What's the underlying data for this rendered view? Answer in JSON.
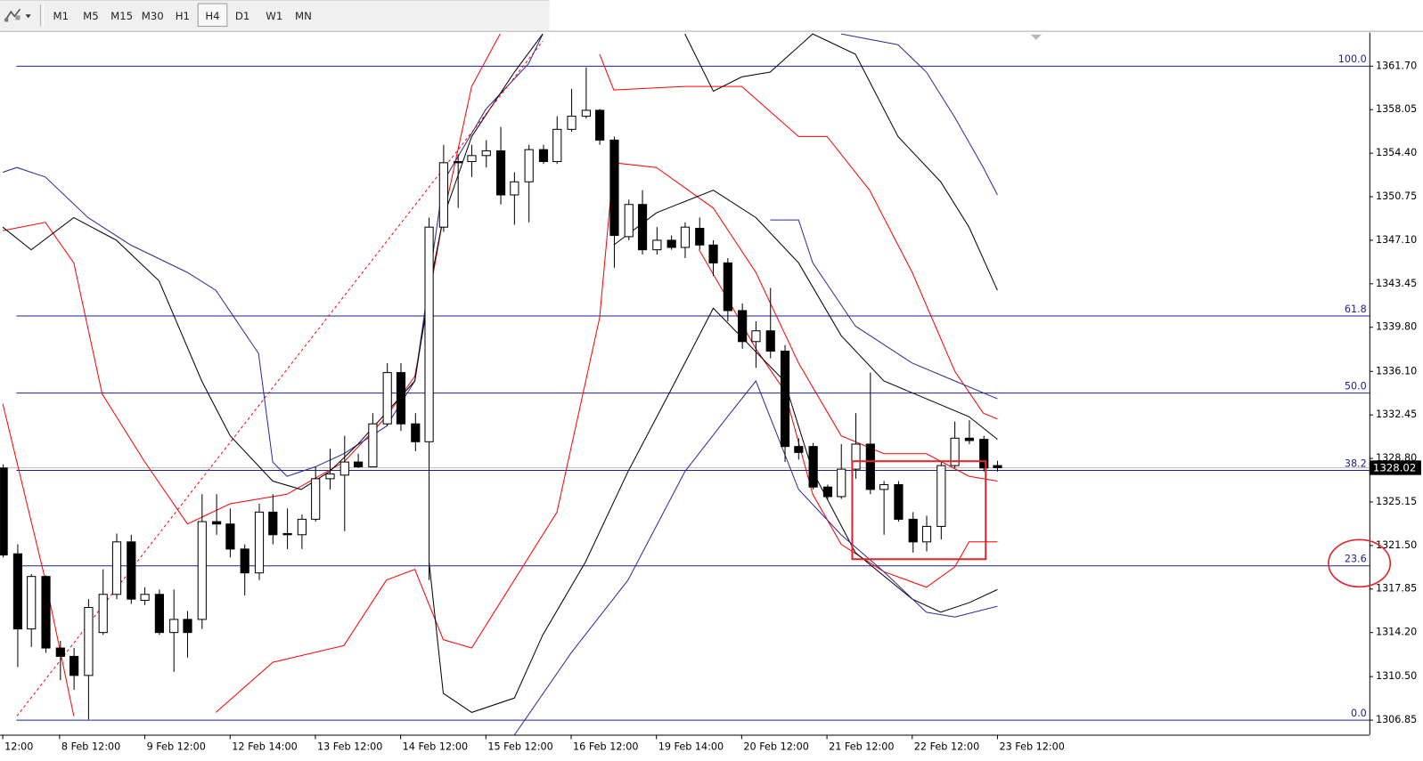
{
  "toolbar": {
    "buttons": [
      "M1",
      "M5",
      "M15",
      "M30",
      "H1",
      "H4",
      "D1",
      "W1",
      "MN"
    ],
    "active": "H4"
  },
  "chart_data": {
    "type": "candlestick",
    "x": [
      0,
      1,
      2,
      3,
      4,
      5,
      6,
      7,
      8,
      9,
      10,
      11,
      12,
      13,
      14,
      15,
      16,
      17,
      18,
      19,
      20,
      21,
      22,
      23,
      24,
      25,
      26,
      27,
      28,
      29,
      30,
      31,
      32,
      33,
      34,
      35,
      36,
      37,
      38,
      39,
      40,
      41,
      42,
      43,
      44,
      45,
      46,
      47,
      48,
      49,
      50,
      51,
      52,
      53,
      54,
      55,
      56,
      57,
      58,
      59,
      60,
      61,
      62,
      63,
      64,
      65,
      66,
      67,
      68,
      69,
      70
    ],
    "open": [
      1328.0,
      1320.8,
      1314.5,
      1318.9,
      1312.9,
      1312.2,
      1310.6,
      1314.2,
      1317.4,
      1321.8,
      1316.9,
      1317.4,
      1314.2,
      1315.3,
      1315.3,
      1323.5,
      1323.3,
      1321.2,
      1319.2,
      1324.3,
      1322.5,
      1322.4,
      1323.7,
      1327.1,
      1327.4,
      1328.5,
      1328.1,
      1331.7,
      1336.0,
      1331.7,
      1330.2,
      1348.2,
      1353.7,
      1353.7,
      1354.2,
      1354.6,
      1350.9,
      1352.0,
      1354.7,
      1353.7,
      1356.4,
      1357.5,
      1358.0,
      1355.5,
      1347.4,
      1350.1,
      1346.3,
      1347.1,
      1346.5,
      1348.1,
      1346.7,
      1345.2,
      1341.2,
      1338.6,
      1339.5,
      1337.8,
      1329.8,
      1329.8,
      1326.4,
      1325.6,
      1327.9,
      1330.0,
      1326.2,
      1326.6,
      1323.7,
      1321.8,
      1323.1,
      1328.2,
      1330.5,
      1330.4,
      1328.2
    ],
    "high": [
      1328.3,
      1321.6,
      1319.1,
      1319.0,
      1313.5,
      1312.9,
      1317.0,
      1319.5,
      1322.5,
      1322.4,
      1318.0,
      1317.8,
      1317.8,
      1316.0,
      1325.8,
      1325.8,
      1324.6,
      1321.6,
      1325.0,
      1325.8,
      1324.6,
      1324.1,
      1328.1,
      1329.6,
      1330.7,
      1329.2,
      1332.6,
      1336.8,
      1336.8,
      1332.6,
      1349.0,
      1355.1,
      1354.3,
      1355.1,
      1355.5,
      1356.6,
      1352.8,
      1355.1,
      1355.1,
      1357.5,
      1359.8,
      1361.6,
      1358.1,
      1355.8,
      1350.5,
      1351.3,
      1348.2,
      1347.5,
      1348.6,
      1349.0,
      1347.1,
      1345.6,
      1341.8,
      1340.3,
      1343.1,
      1338.3,
      1330.5,
      1330.1,
      1326.6,
      1330.0,
      1332.6,
      1336.0,
      1326.9,
      1326.9,
      1324.3,
      1324.0,
      1328.5,
      1331.9,
      1332.0,
      1330.7,
      1328.6
    ],
    "low": [
      1320.5,
      1311.3,
      1313.0,
      1312.5,
      1310.2,
      1309.4,
      1306.9,
      1314.0,
      1317.0,
      1316.6,
      1316.5,
      1314.0,
      1310.9,
      1312.1,
      1314.5,
      1322.4,
      1320.5,
      1317.3,
      1318.6,
      1321.6,
      1321.2,
      1321.2,
      1323.5,
      1326.2,
      1322.7,
      1328.0,
      1328.1,
      1331.5,
      1331.1,
      1329.4,
      1318.6,
      1347.8,
      1349.8,
      1352.4,
      1353.2,
      1350.1,
      1348.4,
      1348.6,
      1353.5,
      1353.5,
      1356.2,
      1357.3,
      1355.1,
      1344.8,
      1347.1,
      1345.9,
      1345.9,
      1346.3,
      1345.6,
      1346.3,
      1344.1,
      1340.3,
      1338.0,
      1336.4,
      1337.2,
      1328.5,
      1328.7,
      1326.2,
      1325.4,
      1325.4,
      1327.1,
      1325.8,
      1322.4,
      1323.5,
      1320.9,
      1321.0,
      1322.0,
      1328.0,
      1330.0,
      1327.7,
      1327.7
    ],
    "close": [
      1320.7,
      1314.5,
      1318.9,
      1312.9,
      1312.2,
      1310.6,
      1316.3,
      1317.4,
      1321.8,
      1317.0,
      1317.4,
      1314.2,
      1315.3,
      1314.2,
      1323.5,
      1323.3,
      1321.2,
      1319.2,
      1324.3,
      1322.4,
      1322.4,
      1323.7,
      1327.1,
      1327.5,
      1328.5,
      1328.1,
      1331.7,
      1336.0,
      1331.7,
      1330.2,
      1348.2,
      1353.6,
      1353.6,
      1354.2,
      1354.6,
      1350.9,
      1352.0,
      1354.7,
      1353.7,
      1356.4,
      1357.5,
      1358.0,
      1355.5,
      1347.5,
      1350.1,
      1346.3,
      1347.1,
      1346.5,
      1348.2,
      1346.7,
      1345.2,
      1341.2,
      1338.6,
      1339.5,
      1337.8,
      1329.8,
      1329.3,
      1326.4,
      1325.6,
      1327.9,
      1330.0,
      1326.2,
      1326.6,
      1323.7,
      1321.8,
      1323.1,
      1328.2,
      1330.5,
      1330.3,
      1328.0,
      1328.02
    ],
    "up_color": "#ffffff",
    "down_color": "#000000",
    "xlim": [
      -0.19,
      96.17
    ],
    "xticks": [
      {
        "value": 0,
        "label": "12:00"
      },
      {
        "value": 4,
        "label": "8 Feb 12:00"
      },
      {
        "value": 10,
        "label": "9 Feb 12:00"
      },
      {
        "value": 16,
        "label": "12 Feb 14:00"
      },
      {
        "value": 22,
        "label": "13 Feb 12:00"
      },
      {
        "value": 28,
        "label": "14 Feb 12:00"
      },
      {
        "value": 34,
        "label": "15 Feb 12:00"
      },
      {
        "value": 40,
        "label": "16 Feb 12:00"
      },
      {
        "value": 46,
        "label": "19 Feb 14:00"
      },
      {
        "value": 52,
        "label": "20 Feb 12:00"
      },
      {
        "value": 58,
        "label": "21 Feb 12:00"
      },
      {
        "value": 64,
        "label": "22 Feb 12:00"
      },
      {
        "value": 70,
        "label": "23 Feb 12:00"
      }
    ],
    "ylim": [
      1305.63,
      1364.51
    ],
    "yticks": [
      {
        "value": 1361.7,
        "label": "1361.70"
      },
      1358.05,
      {
        "value": 1354.4,
        "label": "1354.40"
      },
      1350.75,
      {
        "value": 1347.1,
        "label": "1347.10"
      },
      1343.45,
      {
        "value": 1339.8,
        "label": "1339.80"
      },
      {
        "value": 1336.1,
        "label": "1336.10"
      },
      1332.45,
      {
        "value": 1328.8,
        "label": "1328.80"
      },
      1325.15,
      {
        "value": 1321.5,
        "label": "1321.50"
      },
      1317.85,
      {
        "value": 1314.2,
        "label": "1314.20"
      },
      {
        "value": 1310.5,
        "label": "1310.50"
      },
      1306.85
    ],
    "last_price": 1328.02,
    "fibonacci": {
      "color": "#1f1f8f",
      "levels": [
        {
          "value": 1361.7,
          "label": "100.0"
        },
        {
          "value": 1340.75,
          "label": "61.8"
        },
        {
          "value": 1334.28,
          "label": "50.0"
        },
        {
          "value": 1327.8,
          "label": "38.2"
        },
        {
          "value": 1319.79,
          "label": "23.6"
        },
        {
          "value": 1306.85,
          "label": "0.0"
        }
      ]
    },
    "indicators": [
      {
        "color": "#ff0000",
        "x": [
          0,
          3,
          5,
          7,
          10,
          13,
          16,
          20,
          24,
          27,
          29,
          31,
          33,
          35,
          38,
          42,
          43,
          48,
          52,
          56,
          58,
          61,
          64,
          67,
          69,
          70
        ],
        "values": [
          1347.9,
          1348.6,
          1345.2,
          1334.2,
          1328.5,
          1323.3,
          1325.0,
          1325.8,
          1328.5,
          1332.3,
          1335.7,
          1349.0,
          1360.0,
          1364.4,
          null,
          1362.7,
          1359.7,
          1360.0,
          1360.0,
          1355.8,
          1355.8,
          1351.3,
          1344.4,
          1336.1,
          1332.6,
          1332.1
        ]
      },
      {
        "color": "#ff0000",
        "x": [
          0,
          3,
          5,
          8,
          15,
          19,
          24,
          27,
          29,
          31,
          33,
          36,
          39,
          42,
          43,
          46,
          50,
          53,
          56,
          59,
          62,
          65,
          68,
          70
        ],
        "values": [
          1333.4,
          1318.6,
          1307.2,
          null,
          1307.5,
          1311.7,
          1313.1,
          1318.6,
          1319.5,
          1313.6,
          1312.9,
          1318.6,
          1324.3,
          1340.6,
          1353.6,
          1353.2,
          1349.8,
          1344.4,
          1336.8,
          1330.7,
          1329.2,
          1329.2,
          1327.3,
          1326.9
        ]
      },
      {
        "color": "#ff0000",
        "x": [
          49,
          51,
          53,
          55,
          57,
          59,
          62,
          65,
          67,
          68,
          70
        ],
        "values": [
          1346.3,
          1342.2,
          1338.0,
          1334.5,
          1325.8,
          1321.6,
          1319.3,
          1318.0,
          1319.7,
          1321.8,
          1321.8
        ]
      },
      {
        "color": "#2b2b9a",
        "x": [
          0,
          1,
          3,
          6,
          9,
          13,
          15,
          18,
          19,
          20,
          22,
          24,
          27,
          29,
          31,
          34,
          37,
          38,
          45,
          59,
          63,
          65,
          67,
          69,
          70
        ],
        "values": [
          1352.8,
          1353.2,
          1352.4,
          1349.0,
          1346.7,
          1344.4,
          1342.9,
          1337.6,
          1328.5,
          1327.3,
          1328.1,
          1329.2,
          1331.5,
          1335.3,
          1352.0,
          1358.1,
          1361.9,
          1364.4,
          null,
          1364.4,
          1363.5,
          1361.2,
          1357.4,
          1353.2,
          1350.9
        ]
      },
      {
        "color": "#000000",
        "x": [
          0,
          2,
          5,
          8,
          11,
          14,
          16,
          19,
          21,
          23,
          25,
          29,
          30,
          31,
          33,
          36,
          38,
          45,
          48,
          50,
          52,
          54,
          57,
          60,
          63,
          66,
          68,
          70
        ],
        "values": [
          1348.2,
          1346.3,
          1349.0,
          1347.1,
          1343.7,
          1335.3,
          1330.7,
          1326.9,
          1326.2,
          1327.7,
          1330.0,
          1335.3,
          1342.9,
          1349.0,
          1355.8,
          1361.2,
          1364.4,
          null,
          1364.4,
          1359.6,
          1360.8,
          1361.2,
          1364.4,
          1362.7,
          1355.8,
          1352.0,
          1348.2,
          1342.9
        ]
      },
      {
        "color": "#000000",
        "x": [
          30,
          31,
          33,
          36,
          38,
          41,
          44,
          47,
          50,
          55,
          57,
          60,
          64,
          66,
          68,
          70
        ],
        "values": [
          1320.1,
          1309.1,
          1307.5,
          1308.7,
          1314.0,
          1320.1,
          1327.7,
          1334.5,
          1341.4,
          1335.3,
          1327.7,
          1320.9,
          1317.0,
          1315.9,
          1316.7,
          1317.8
        ]
      },
      {
        "color": "#000000",
        "x": [
          43,
          46,
          50,
          53,
          56,
          59,
          62,
          65,
          68,
          70
        ],
        "values": [
          1346.7,
          1349.4,
          1351.3,
          1349.0,
          1345.2,
          1339.1,
          1335.3,
          1333.8,
          1332.3,
          1330.4
        ]
      },
      {
        "color": "#2b2b9a",
        "x": [
          54,
          56,
          57,
          60,
          64,
          67,
          70
        ],
        "values": [
          1348.8,
          1348.8,
          1345.2,
          1339.9,
          1336.8,
          1335.3,
          1333.8
        ]
      },
      {
        "color": "#2b2b9a",
        "x": [
          36,
          40,
          44,
          48,
          51,
          53,
          56,
          59,
          62,
          65,
          67,
          70
        ],
        "values": [
          1305.6,
          1312.5,
          1318.6,
          1327.7,
          1332.3,
          1335.3,
          1326.2,
          1322.4,
          1319.3,
          1315.9,
          1315.5,
          1316.4
        ]
      }
    ],
    "trendline": {
      "color": "#ff0000",
      "x": [
        1,
        38
      ],
      "values": [
        1307.2,
        1363.8
      ]
    }
  }
}
